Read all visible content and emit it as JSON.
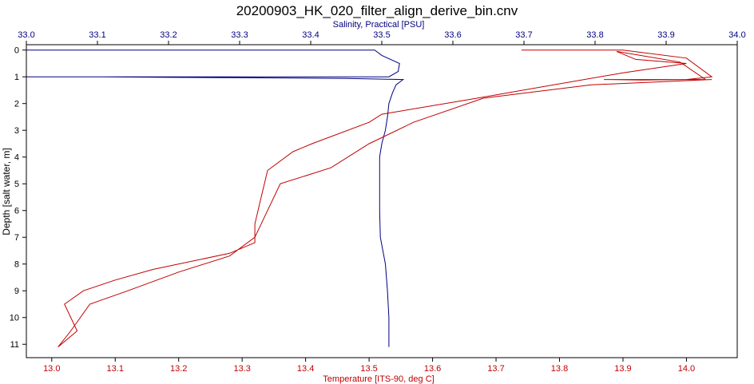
{
  "chart_data": {
    "type": "line",
    "title": "20200903_HK_020_filter_align_derive_bin.cnv",
    "top_axis": {
      "label": "Salinity, Practical [PSU]",
      "range": [
        33.0,
        34.0
      ],
      "ticks": [
        "33.0",
        "33.1",
        "33.2",
        "33.3",
        "33.4",
        "33.5",
        "33.6",
        "33.7",
        "33.8",
        "33.9",
        "34.0"
      ],
      "color": "#000080"
    },
    "bottom_axis": {
      "label": "Temperature [ITS-90, deg C]",
      "range": [
        12.96,
        14.08
      ],
      "ticks": [
        "13.0",
        "13.1",
        "13.2",
        "13.3",
        "13.4",
        "13.5",
        "13.6",
        "13.7",
        "13.8",
        "13.9",
        "14.0"
      ],
      "color": "#c00000"
    },
    "y_axis": {
      "label": "Depth [salt water, m]",
      "range": [
        -0.2,
        11.5
      ],
      "inverted": true,
      "ticks": [
        "0",
        "1",
        "2",
        "3",
        "4",
        "5",
        "6",
        "7",
        "8",
        "9",
        "10",
        "11"
      ]
    },
    "grid": false,
    "series": [
      {
        "axis": "top",
        "color": "#000080",
        "points": [
          [
            33.0,
            0
          ],
          [
            33.49,
            0
          ],
          [
            33.5,
            0.2
          ],
          [
            33.525,
            0.5
          ],
          [
            33.523,
            0.8
          ],
          [
            33.51,
            1.0
          ],
          [
            33.0,
            1.0
          ],
          [
            33.1,
            1.0
          ],
          [
            33.2,
            1.02
          ],
          [
            33.33,
            1.04
          ],
          [
            33.45,
            1.06
          ],
          [
            33.53,
            1.1
          ],
          [
            33.52,
            1.3
          ],
          [
            33.515,
            1.6
          ],
          [
            33.51,
            2.0
          ],
          [
            33.508,
            2.5
          ],
          [
            33.505,
            3.0
          ],
          [
            33.5,
            3.5
          ],
          [
            33.497,
            4.0
          ],
          [
            33.497,
            5.0
          ],
          [
            33.497,
            6.0
          ],
          [
            33.498,
            7.0
          ],
          [
            33.505,
            8.0
          ],
          [
            33.508,
            9.0
          ],
          [
            33.51,
            10.0
          ],
          [
            33.51,
            11.1
          ]
        ]
      },
      {
        "axis": "bottom",
        "color": "#c00000",
        "points": [
          [
            13.74,
            0
          ],
          [
            13.9,
            0
          ],
          [
            14.0,
            0.3
          ],
          [
            14.04,
            1.0
          ],
          [
            14.0,
            1.1
          ],
          [
            13.93,
            1.12
          ],
          [
            13.87,
            1.1
          ],
          [
            14.03,
            1.1
          ],
          [
            13.99,
            0.45
          ],
          [
            13.89,
            0.05
          ],
          [
            13.92,
            0.35
          ],
          [
            14.0,
            0.5
          ],
          [
            13.9,
            0.85
          ],
          [
            13.67,
            1.8
          ],
          [
            13.52,
            2.4
          ],
          [
            13.5,
            2.7
          ],
          [
            13.41,
            3.5
          ],
          [
            13.38,
            3.8
          ],
          [
            13.34,
            4.5
          ],
          [
            13.33,
            5.5
          ],
          [
            13.32,
            6.5
          ],
          [
            13.32,
            7.2
          ],
          [
            13.28,
            7.6
          ],
          [
            13.16,
            8.2
          ],
          [
            13.1,
            8.6
          ],
          [
            13.05,
            9.0
          ],
          [
            13.02,
            9.5
          ],
          [
            13.04,
            10.5
          ],
          [
            13.01,
            11.1
          ],
          [
            13.03,
            10.5
          ],
          [
            13.06,
            9.5
          ],
          [
            13.12,
            9.0
          ],
          [
            13.2,
            8.3
          ],
          [
            13.28,
            7.7
          ],
          [
            13.32,
            7.0
          ],
          [
            13.34,
            6.0
          ],
          [
            13.36,
            5.0
          ],
          [
            13.44,
            4.4
          ],
          [
            13.5,
            3.5
          ],
          [
            13.57,
            2.7
          ],
          [
            13.68,
            1.8
          ],
          [
            13.85,
            1.3
          ],
          [
            14.04,
            1.1
          ]
        ]
      }
    ]
  }
}
